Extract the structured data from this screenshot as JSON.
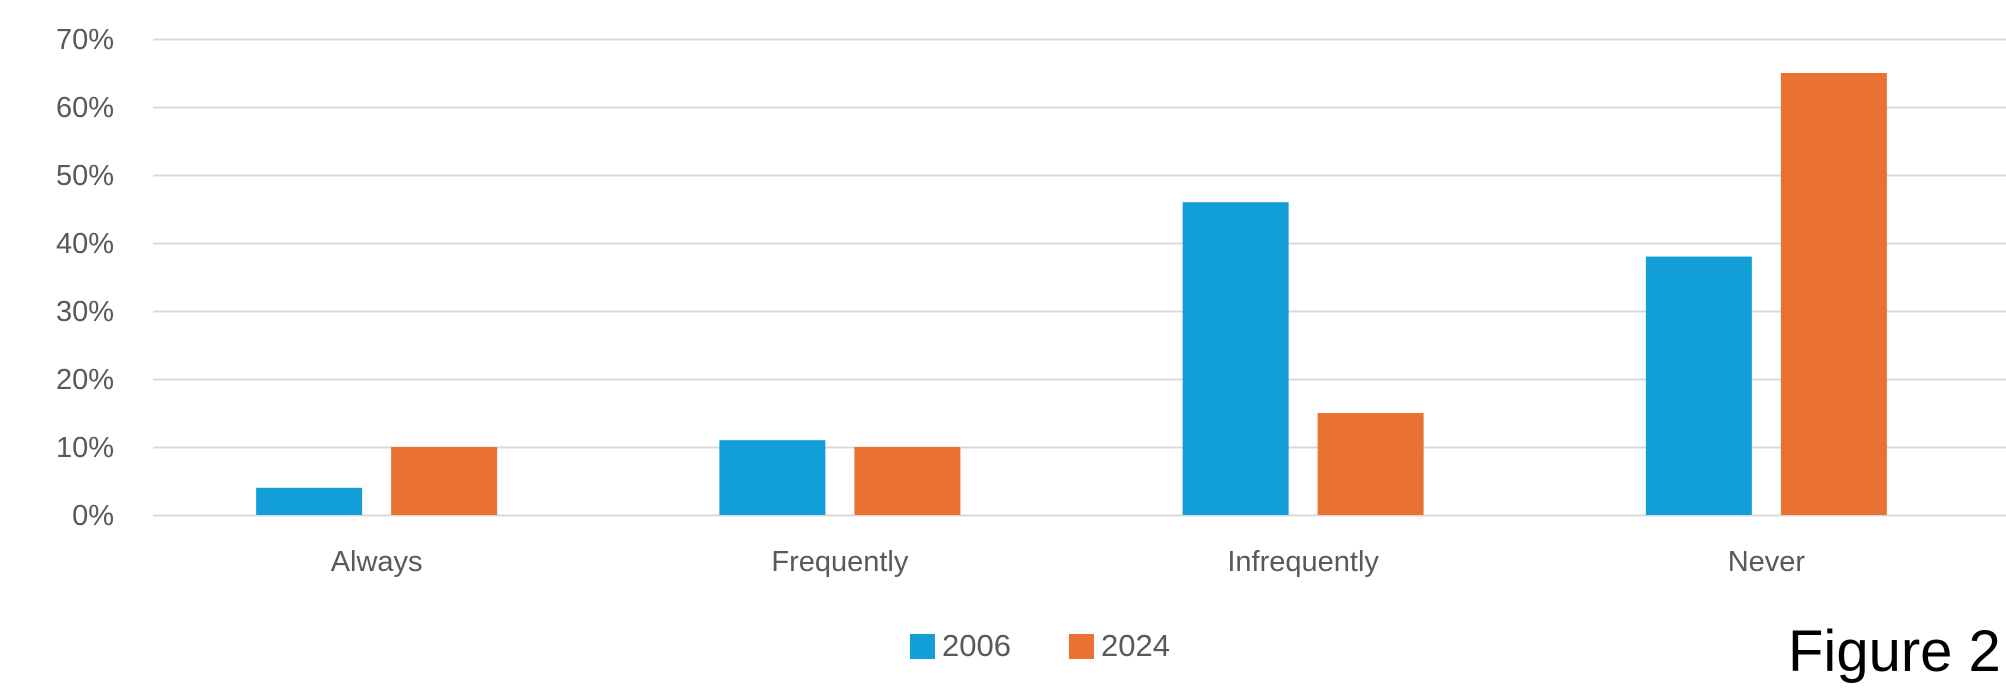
{
  "chart_data": {
    "type": "bar",
    "categories": [
      "Always",
      "Frequently",
      "Infrequently",
      "Never"
    ],
    "series": [
      {
        "name": "2006",
        "values": [
          4,
          11,
          46,
          38
        ],
        "color": "#129ED7"
      },
      {
        "name": "2024",
        "values": [
          10,
          10,
          15,
          65
        ],
        "color": "#E97132"
      }
    ],
    "ylim": [
      0,
      70
    ],
    "yticks": [
      0,
      10,
      20,
      30,
      40,
      50,
      60,
      70
    ],
    "ytick_labels": [
      "0%",
      "10%",
      "20%",
      "30%",
      "40%",
      "50%",
      "60%",
      "70%"
    ],
    "grid": true,
    "legend_position": "bottom"
  },
  "caption": "Figure 2",
  "colors": {
    "gridline": "#D9D9D9",
    "text": "#595959"
  }
}
